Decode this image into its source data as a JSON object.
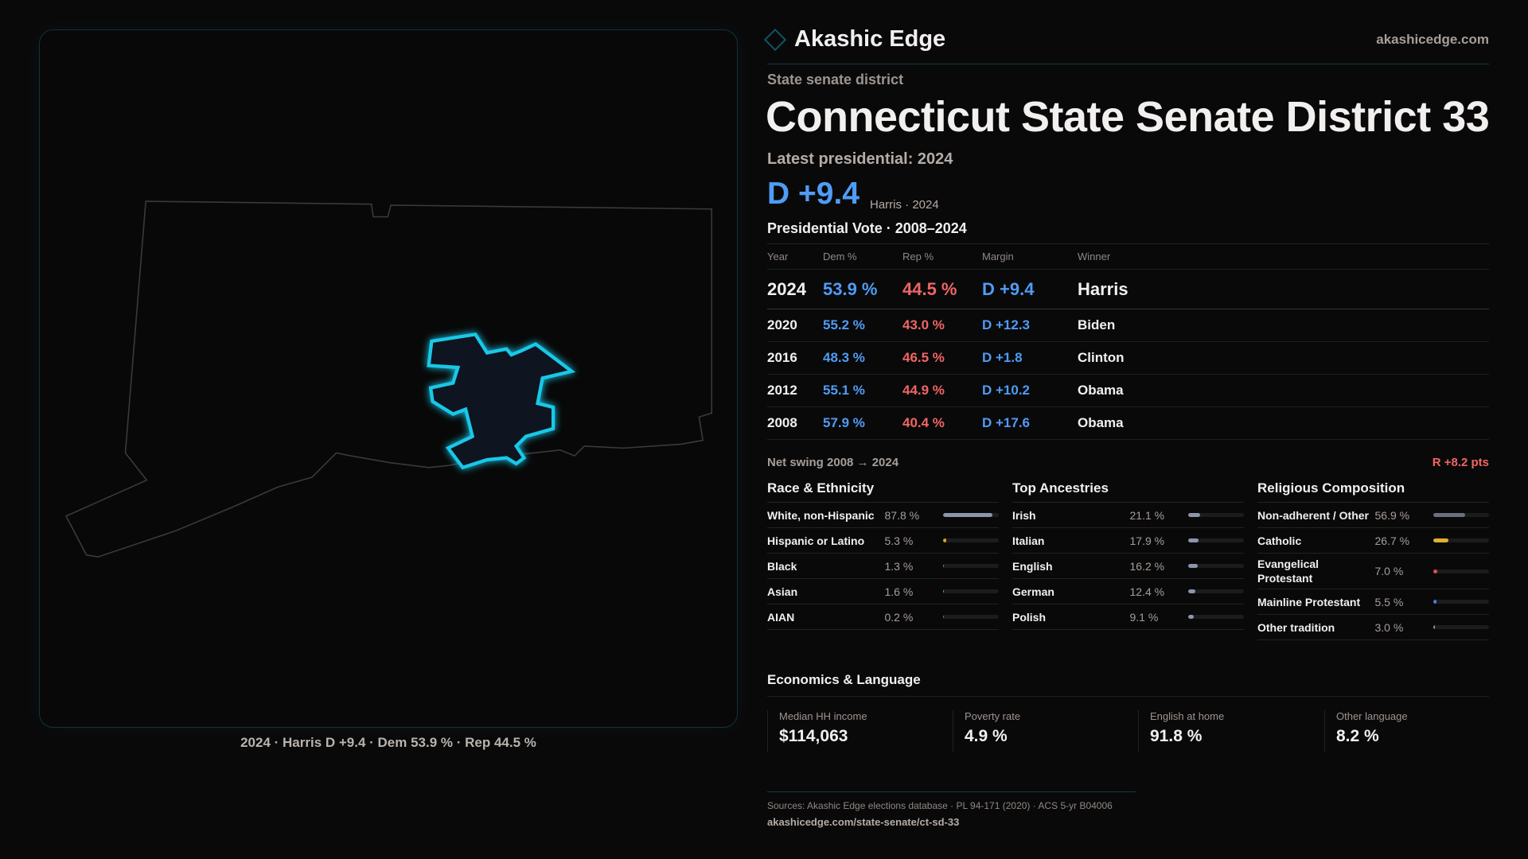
{
  "brand": {
    "name": "Akashic Edge",
    "site": "akashicedge.com"
  },
  "kind": "State senate district",
  "title": "Connecticut State Senate District 33",
  "latest": "Latest presidential: 2024",
  "margin": "D +9.4",
  "margin_sub": "Harris · 2024",
  "pv_title": "Presidential Vote · 2008–2024",
  "table": {
    "headers": [
      "Year",
      "Dem %",
      "Rep %",
      "Margin",
      "Winner"
    ],
    "rows": [
      [
        "2024",
        "53.9 %",
        "44.5 %",
        "D +9.4",
        "Harris"
      ],
      [
        "2020",
        "55.2 %",
        "43.0 %",
        "D +12.3",
        "Biden"
      ],
      [
        "2016",
        "48.3 %",
        "46.5 %",
        "D +1.8",
        "Clinton"
      ],
      [
        "2012",
        "55.1 %",
        "44.9 %",
        "D +10.2",
        "Obama"
      ],
      [
        "2008",
        "57.9 %",
        "40.4 %",
        "D +17.6",
        "Obama"
      ]
    ]
  },
  "swing": {
    "label": "Net swing 2008 → 2024",
    "value": "R +8.2 pts"
  },
  "race": {
    "title": "Race & Ethnicity",
    "items": [
      {
        "label": "White, non-Hispanic",
        "value": "87.8 %",
        "pct": 87.8,
        "color": "#8a96aa"
      },
      {
        "label": "Hispanic or Latino",
        "value": "5.3 %",
        "pct": 5.3,
        "color": "#e0a020"
      },
      {
        "label": "Black",
        "value": "1.3 %",
        "pct": 1.3,
        "color": "#8070e0"
      },
      {
        "label": "Asian",
        "value": "1.6 %",
        "pct": 1.6,
        "color": "#30c080"
      },
      {
        "label": "AIAN",
        "value": "0.2 %",
        "pct": 0.2,
        "color": "#777"
      }
    ]
  },
  "ancestry": {
    "title": "Top Ancestries",
    "items": [
      {
        "label": "Irish",
        "value": "21.1 %",
        "pct": 21.1,
        "color": "#8a96aa"
      },
      {
        "label": "Italian",
        "value": "17.9 %",
        "pct": 17.9,
        "color": "#8a96aa"
      },
      {
        "label": "English",
        "value": "16.2 %",
        "pct": 16.2,
        "color": "#8a96aa"
      },
      {
        "label": "German",
        "value": "12.4 %",
        "pct": 12.4,
        "color": "#8a96aa"
      },
      {
        "label": "Polish",
        "value": "9.1 %",
        "pct": 9.1,
        "color": "#8a96aa"
      }
    ]
  },
  "religion": {
    "title": "Religious Composition",
    "items": [
      {
        "label": "Non-adherent / Other",
        "value": "56.9 %",
        "pct": 56.9,
        "color": "#6b7080"
      },
      {
        "label": "Catholic",
        "value": "26.7 %",
        "pct": 26.7,
        "color": "#e0b030"
      },
      {
        "label": "Evangelical Protestant",
        "value": "7.0 %",
        "pct": 7.0,
        "color": "#e05050"
      },
      {
        "label": "Mainline Protestant",
        "value": "5.5 %",
        "pct": 5.5,
        "color": "#4a80e0"
      },
      {
        "label": "Other tradition",
        "value": "3.0 %",
        "pct": 3.0,
        "color": "#999"
      }
    ]
  },
  "econ": {
    "title": "Economics & Language",
    "cards": [
      {
        "label": "Median HH income",
        "value": "$114,063"
      },
      {
        "label": "Poverty rate",
        "value": "4.9 %"
      },
      {
        "label": "English at home",
        "value": "91.8 %"
      },
      {
        "label": "Other language",
        "value": "8.2 %"
      }
    ]
  },
  "map_caption": "2024 · Harris D +9.4 · Dem 53.9 % · Rep 44.5 %",
  "sources": "Sources: Akashic Edge elections database · PL 94-171 (2020) · ACS 5-yr B04006",
  "url": "akashicedge.com/state-senate/ct-sd-33",
  "colors": {
    "dem": "#4f9cf5",
    "rep": "#f06565",
    "district": "#19c8e8"
  }
}
